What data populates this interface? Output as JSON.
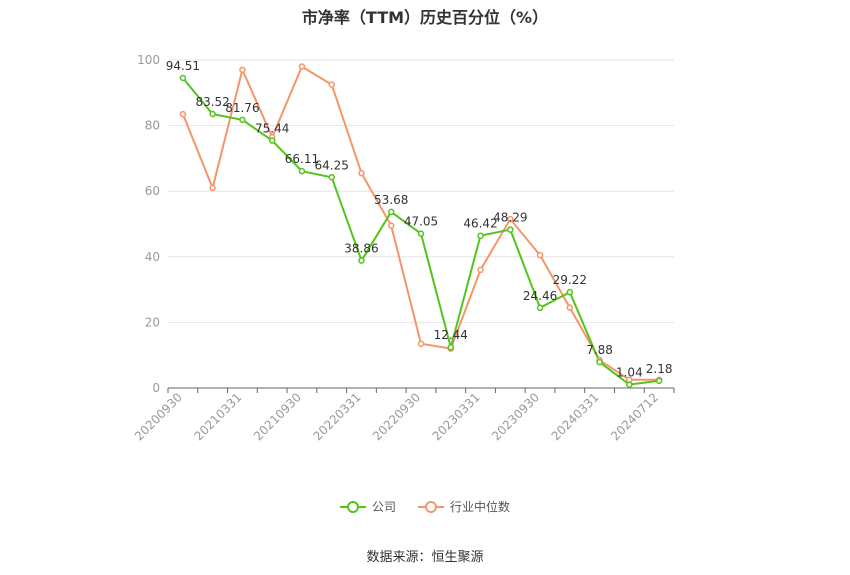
{
  "title": "市净率（TTM）历史百分位（%）",
  "source": "数据来源：恒生聚源",
  "colors": {
    "company": "#52c41a",
    "industry": "#f4956a",
    "grid": "#e6e6e6",
    "axis": "#999999"
  },
  "chart_data": {
    "type": "line",
    "title": "市净率（TTM）历史百分位（%）",
    "ylim": [
      0,
      100
    ],
    "yticks": [
      0,
      20,
      40,
      60,
      80,
      100
    ],
    "grid": true,
    "legend_position": "bottom",
    "x_tick_labels": [
      "20200930",
      "20210331",
      "20210930",
      "20220331",
      "20220930",
      "20230331",
      "20230930",
      "20240331",
      "20240712"
    ],
    "x_tick_indices": [
      0,
      2,
      4,
      6,
      8,
      10,
      12,
      14,
      16
    ],
    "series": [
      {
        "name": "公司",
        "color": "#52c41a",
        "values": [
          94.51,
          83.52,
          81.76,
          75.44,
          66.11,
          64.25,
          38.86,
          53.68,
          47.05,
          12.44,
          46.42,
          48.29,
          24.46,
          29.22,
          7.88,
          1.04,
          2.18
        ],
        "labels": [
          "94.51",
          "83.52",
          "81.76",
          "75.44",
          "66.11",
          "64.25",
          "38.86",
          "53.68",
          "47.05",
          "12.44",
          "46.42",
          "48.29",
          "24.46",
          "29.22",
          "7.88",
          "1.04",
          "2.18"
        ]
      },
      {
        "name": "行业中位数",
        "color": "#f4956a",
        "values": [
          83.5,
          61.0,
          97.0,
          76.5,
          98.0,
          92.5,
          65.5,
          49.5,
          13.5,
          12.0,
          36.0,
          51.5,
          40.5,
          24.5,
          8.5,
          2.5,
          2.5
        ]
      }
    ]
  }
}
